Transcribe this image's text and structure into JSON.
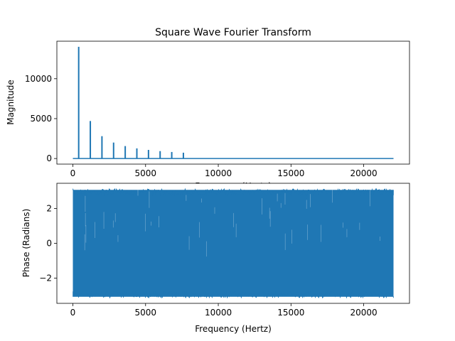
{
  "chart_data": [
    {
      "type": "line",
      "title": "Square Wave Fourier Transform",
      "xlabel": "Frequency (Hertz)",
      "ylabel": "Magnitude",
      "xlim": [
        -1100,
        23150
      ],
      "ylim": [
        -700,
        14700
      ],
      "xticks": [
        0,
        5000,
        10000,
        15000,
        20000
      ],
      "yticks": [
        0,
        5000,
        10000
      ],
      "color": "#1f77b4",
      "grid": false,
      "x_range": [
        0,
        22050
      ],
      "baseline": 0,
      "peaks": [
        {
          "x": 400,
          "y": 14000
        },
        {
          "x": 1200,
          "y": 4700
        },
        {
          "x": 2000,
          "y": 2800
        },
        {
          "x": 2800,
          "y": 2000
        },
        {
          "x": 3600,
          "y": 1560
        },
        {
          "x": 4400,
          "y": 1270
        },
        {
          "x": 5200,
          "y": 1080
        },
        {
          "x": 6000,
          "y": 930
        },
        {
          "x": 6800,
          "y": 820
        },
        {
          "x": 7600,
          "y": 730
        }
      ]
    },
    {
      "type": "line",
      "title": "",
      "xlabel": "Frequency (Hertz)",
      "ylabel": "Phase (Radians)",
      "xlim": [
        -1100,
        23150
      ],
      "ylim": [
        -3.45,
        3.45
      ],
      "xticks": [
        0,
        5000,
        10000,
        15000,
        20000
      ],
      "yticks": [
        -2,
        0,
        2
      ],
      "color": "#1f77b4",
      "grid": false,
      "x_range": [
        0,
        22050
      ],
      "band": [
        -3.14159,
        3.14159
      ],
      "notes": "dense noise-like phase filling the band across the full frequency range"
    }
  ]
}
